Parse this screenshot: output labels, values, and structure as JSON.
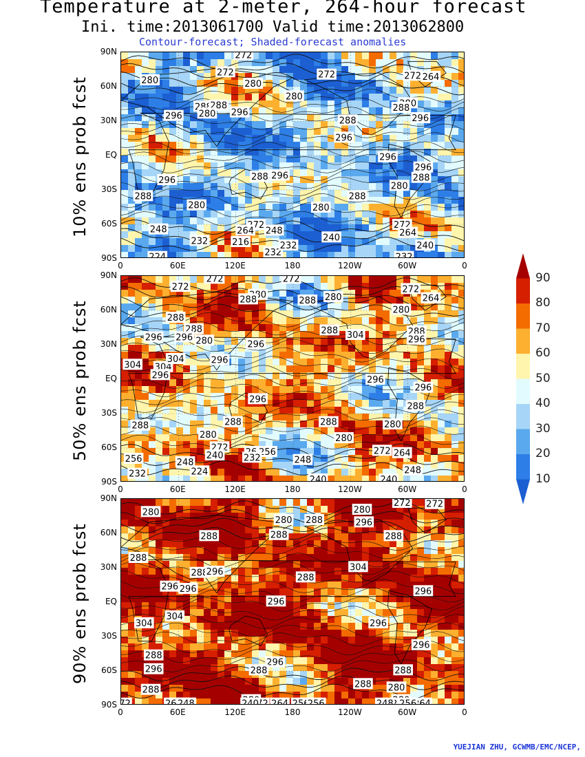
{
  "header": {
    "title": "Temperature at 2-meter, 264-hour forecast",
    "time_line": "Ini. time:2013061700    Valid time:2013062800",
    "description": "Contour-forecast; Shaded-forecast anomalies"
  },
  "axes": {
    "lat_ticks": [
      "90N",
      "60N",
      "30N",
      "EQ",
      "30S",
      "60S",
      "90S"
    ],
    "lon_ticks": [
      "0",
      "60E",
      "120E",
      "180",
      "120W",
      "60W",
      "0"
    ]
  },
  "panels": [
    {
      "label": "10% ens prob fcst",
      "contour_labels": [
        {
          "text": "272",
          "lon": 109,
          "lat": 73
        },
        {
          "text": "272",
          "lon": 128,
          "lat": 88
        },
        {
          "text": "280",
          "lon": 30,
          "lat": 66
        },
        {
          "text": "280",
          "lon": 138,
          "lat": 63
        },
        {
          "text": "272",
          "lon": 215,
          "lat": 71
        },
        {
          "text": "272",
          "lon": 305,
          "lat": 70
        },
        {
          "text": "264",
          "lon": 324,
          "lat": 69
        },
        {
          "text": "280",
          "lon": 181,
          "lat": 52
        },
        {
          "text": "280",
          "lon": 300,
          "lat": 46
        },
        {
          "text": "288",
          "lon": 293,
          "lat": 42
        },
        {
          "text": "288",
          "lon": 86,
          "lat": 43
        },
        {
          "text": "288",
          "lon": 102,
          "lat": 44
        },
        {
          "text": "296",
          "lon": 55,
          "lat": 35
        },
        {
          "text": "280",
          "lon": 90,
          "lat": 37
        },
        {
          "text": "296",
          "lon": 124,
          "lat": 38
        },
        {
          "text": "296",
          "lon": 313,
          "lat": 33
        },
        {
          "text": "288",
          "lon": 237,
          "lat": 31
        },
        {
          "text": "296",
          "lon": 233,
          "lat": 16
        },
        {
          "text": "296",
          "lon": 279,
          "lat": -1
        },
        {
          "text": "296",
          "lon": 316,
          "lat": -10
        },
        {
          "text": "288",
          "lon": 314,
          "lat": -19
        },
        {
          "text": "280",
          "lon": 291,
          "lat": -26
        },
        {
          "text": "288",
          "lon": 145,
          "lat": -18
        },
        {
          "text": "296",
          "lon": 166,
          "lat": -17
        },
        {
          "text": "296",
          "lon": 48,
          "lat": -21
        },
        {
          "text": "288",
          "lon": 23,
          "lat": -35
        },
        {
          "text": "280",
          "lon": 79,
          "lat": -43
        },
        {
          "text": "288",
          "lon": 247,
          "lat": -35
        },
        {
          "text": "280",
          "lon": 209,
          "lat": -45
        },
        {
          "text": "248",
          "lon": 39,
          "lat": -64
        },
        {
          "text": "272",
          "lon": 141,
          "lat": -60
        },
        {
          "text": "264",
          "lon": 130,
          "lat": -65
        },
        {
          "text": "248",
          "lon": 160,
          "lat": -65
        },
        {
          "text": "272",
          "lon": 294,
          "lat": -60
        },
        {
          "text": "264",
          "lon": 300,
          "lat": -67
        },
        {
          "text": "240",
          "lon": 220,
          "lat": -71
        },
        {
          "text": "232",
          "lon": 82,
          "lat": -74
        },
        {
          "text": "216",
          "lon": 125,
          "lat": -75
        },
        {
          "text": "232",
          "lon": 159,
          "lat": -84
        },
        {
          "text": "232",
          "lon": 175,
          "lat": -78
        },
        {
          "text": "224",
          "lon": 38,
          "lat": -88
        },
        {
          "text": "232",
          "lon": 296,
          "lat": -88
        },
        {
          "text": "240",
          "lon": 318,
          "lat": -78
        }
      ]
    },
    {
      "label": "50% ens prob fcst",
      "contour_labels": [
        {
          "text": "272",
          "lon": 62,
          "lat": 81
        },
        {
          "text": "272",
          "lon": 98,
          "lat": 89
        },
        {
          "text": "272",
          "lon": 178,
          "lat": 90
        },
        {
          "text": "280",
          "lon": 143,
          "lat": 74
        },
        {
          "text": "288",
          "lon": 133,
          "lat": 70
        },
        {
          "text": "288",
          "lon": 195,
          "lat": 69
        },
        {
          "text": "280",
          "lon": 222,
          "lat": 72
        },
        {
          "text": "272",
          "lon": 303,
          "lat": 79
        },
        {
          "text": "264",
          "lon": 324,
          "lat": 71
        },
        {
          "text": "280",
          "lon": 293,
          "lat": 61
        },
        {
          "text": "288",
          "lon": 57,
          "lat": 54
        },
        {
          "text": "288",
          "lon": 76,
          "lat": 44
        },
        {
          "text": "296",
          "lon": 34,
          "lat": 37
        },
        {
          "text": "296",
          "lon": 66,
          "lat": 37
        },
        {
          "text": "280",
          "lon": 87,
          "lat": 34
        },
        {
          "text": "296",
          "lon": 141,
          "lat": 31
        },
        {
          "text": "296",
          "lon": 103,
          "lat": 17
        },
        {
          "text": "288",
          "lon": 218,
          "lat": 43
        },
        {
          "text": "304",
          "lon": 245,
          "lat": 39
        },
        {
          "text": "288",
          "lon": 309,
          "lat": 42
        },
        {
          "text": "296",
          "lon": 309,
          "lat": 35
        },
        {
          "text": "304",
          "lon": 12,
          "lat": 13
        },
        {
          "text": "304",
          "lon": 44,
          "lat": 11
        },
        {
          "text": "304",
          "lon": 57,
          "lat": 18
        },
        {
          "text": "296",
          "lon": 41,
          "lat": 4
        },
        {
          "text": "296",
          "lon": 266,
          "lat": 0
        },
        {
          "text": "296",
          "lon": 316,
          "lat": -7
        },
        {
          "text": "288",
          "lon": 308,
          "lat": -23
        },
        {
          "text": "296",
          "lon": 143,
          "lat": -17
        },
        {
          "text": "288",
          "lon": 20,
          "lat": -40
        },
        {
          "text": "288",
          "lon": 117,
          "lat": -37
        },
        {
          "text": "288",
          "lon": 217,
          "lat": -37
        },
        {
          "text": "280",
          "lon": 284,
          "lat": -39
        },
        {
          "text": "280",
          "lon": 91,
          "lat": -48
        },
        {
          "text": "280",
          "lon": 233,
          "lat": -51
        },
        {
          "text": "272",
          "lon": 103,
          "lat": -59
        },
        {
          "text": "240",
          "lon": 98,
          "lat": -66
        },
        {
          "text": "264",
          "lon": 139,
          "lat": -63
        },
        {
          "text": "256",
          "lon": 153,
          "lat": -63
        },
        {
          "text": "272",
          "lon": 273,
          "lat": -62
        },
        {
          "text": "264",
          "lon": 294,
          "lat": -64
        },
        {
          "text": "256",
          "lon": 13,
          "lat": -69
        },
        {
          "text": "248",
          "lon": 67,
          "lat": -72
        },
        {
          "text": "232",
          "lon": 137,
          "lat": -68
        },
        {
          "text": "248",
          "lon": 190,
          "lat": -70
        },
        {
          "text": "224",
          "lon": 82,
          "lat": -80
        },
        {
          "text": "232",
          "lon": 17,
          "lat": -82
        },
        {
          "text": "240",
          "lon": 206,
          "lat": -87
        },
        {
          "text": "240",
          "lon": 280,
          "lat": -87
        },
        {
          "text": "248",
          "lon": 305,
          "lat": -79
        }
      ]
    },
    {
      "label": "90% ens prob fcst",
      "contour_labels": [
        {
          "text": "280",
          "lon": 31,
          "lat": 79
        },
        {
          "text": "280",
          "lon": 170,
          "lat": 72
        },
        {
          "text": "288",
          "lon": 202,
          "lat": 72
        },
        {
          "text": "280",
          "lon": 252,
          "lat": 81
        },
        {
          "text": "296",
          "lon": 254,
          "lat": 70
        },
        {
          "text": "272",
          "lon": 294,
          "lat": 87
        },
        {
          "text": "272",
          "lon": 328,
          "lat": 86
        },
        {
          "text": "288",
          "lon": 92,
          "lat": 58
        },
        {
          "text": "288",
          "lon": 165,
          "lat": 59
        },
        {
          "text": "288",
          "lon": 285,
          "lat": 58
        },
        {
          "text": "288",
          "lon": 18,
          "lat": 39
        },
        {
          "text": "288",
          "lon": 82,
          "lat": 26
        },
        {
          "text": "296",
          "lon": 98,
          "lat": 27
        },
        {
          "text": "296",
          "lon": 51,
          "lat": 14
        },
        {
          "text": "296",
          "lon": 70,
          "lat": 12
        },
        {
          "text": "288",
          "lon": 193,
          "lat": 22
        },
        {
          "text": "296",
          "lon": 162,
          "lat": 1
        },
        {
          "text": "304",
          "lon": 248,
          "lat": 31
        },
        {
          "text": "296",
          "lon": 316,
          "lat": 10
        },
        {
          "text": "304",
          "lon": 24,
          "lat": -18
        },
        {
          "text": "304",
          "lon": 56,
          "lat": -12
        },
        {
          "text": "296",
          "lon": 269,
          "lat": -18
        },
        {
          "text": "296",
          "lon": 314,
          "lat": -37
        },
        {
          "text": "288",
          "lon": 34,
          "lat": -46
        },
        {
          "text": "296",
          "lon": 34,
          "lat": -58
        },
        {
          "text": "296",
          "lon": 161,
          "lat": -52
        },
        {
          "text": "288",
          "lon": 144,
          "lat": -59
        },
        {
          "text": "288",
          "lon": 295,
          "lat": -59
        },
        {
          "text": "288",
          "lon": 253,
          "lat": -71
        },
        {
          "text": "280",
          "lon": 288,
          "lat": -74
        },
        {
          "text": "288",
          "lon": 31,
          "lat": -76
        },
        {
          "text": "280",
          "lon": 136,
          "lat": -85
        },
        {
          "text": "280",
          "lon": 293,
          "lat": -85
        },
        {
          "text": "272",
          "lon": 145,
          "lat": -95
        },
        {
          "text": "264",
          "lon": 315,
          "lat": -97
        },
        {
          "text": "272",
          "lon": 292,
          "lat": -97
        },
        {
          "text": "256",
          "lon": 300,
          "lat": -103
        },
        {
          "text": "264",
          "lon": 55,
          "lat": -97
        },
        {
          "text": "256",
          "lon": 68,
          "lat": -97
        },
        {
          "text": "248",
          "lon": 68,
          "lat": -102
        },
        {
          "text": "240",
          "lon": 135,
          "lat": -100
        },
        {
          "text": "264",
          "lon": 166,
          "lat": -100
        },
        {
          "text": "256",
          "lon": 188,
          "lat": -100
        },
        {
          "text": "256",
          "lon": 204,
          "lat": -113
        },
        {
          "text": "248",
          "lon": 276,
          "lat": -115
        },
        {
          "text": "72",
          "lon": 4,
          "lat": -95
        }
      ]
    }
  ],
  "colorbar": {
    "labels": [
      "90",
      "80",
      "70",
      "60",
      "50",
      "40",
      "30",
      "20",
      "10"
    ],
    "colors": [
      "#a50000",
      "#d61e00",
      "#f46b00",
      "#fdb02f",
      "#fff5ac",
      "#e2fbff",
      "#a6d5f7",
      "#5aa9ee",
      "#2d7ee6",
      "#1c5fd2"
    ]
  },
  "credit": "YUEJIAN ZHU, GCWMB/EMC/NCEP,"
}
